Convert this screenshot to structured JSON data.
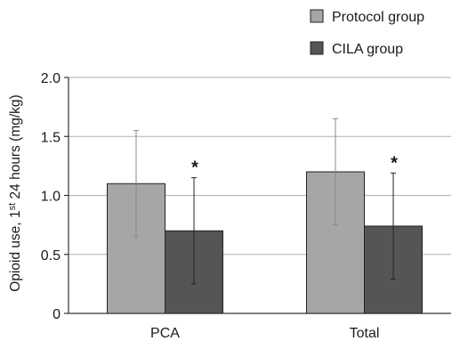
{
  "chart_data": {
    "type": "bar",
    "title": "",
    "xlabel": "",
    "ylabel": {
      "prefix": "Opioid use, 1",
      "sup": "st",
      "suffix": " 24 hours (mg/kg)"
    },
    "ylim": [
      0,
      2.0
    ],
    "yticks": [
      0,
      0.5,
      1.0,
      1.5,
      2.0
    ],
    "ytick_labels": [
      "0",
      "0.5",
      "1.0",
      "1.5",
      "2.0"
    ],
    "grid": true,
    "legend_position": "top-right",
    "categories": [
      "PCA",
      "Total"
    ],
    "series": [
      {
        "name": "Protocol group",
        "color": "#a6a6a6",
        "values": [
          1.1,
          1.2
        ],
        "error": [
          0.45,
          0.45
        ]
      },
      {
        "name": "CILA group",
        "color": "#555555",
        "values": [
          0.7,
          0.74
        ],
        "error": [
          0.45,
          0.45
        ]
      }
    ],
    "annotations": [
      {
        "category": "PCA",
        "series": "CILA group",
        "text": "*"
      },
      {
        "category": "Total",
        "series": "CILA group",
        "text": "*"
      }
    ]
  }
}
